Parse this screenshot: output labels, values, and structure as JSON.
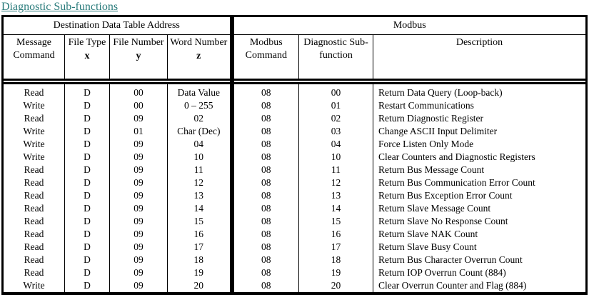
{
  "title": "Diagnostic Sub-functions",
  "title_color": "#2b7c7c",
  "table": {
    "group_headers": [
      {
        "label": "Destination Data Table Address",
        "span": 4
      },
      {
        "label": "Modbus",
        "span": 3
      }
    ],
    "columns": [
      {
        "label": "Message Command",
        "sub": ""
      },
      {
        "label": "File Type",
        "sub": "x"
      },
      {
        "label": "File Number",
        "sub": "y"
      },
      {
        "label": "Word Number",
        "sub": "z"
      },
      {
        "label": "Modbus Command",
        "sub": ""
      },
      {
        "label": "Diagnostic Sub-function",
        "sub": ""
      },
      {
        "label": "Description",
        "sub": ""
      }
    ],
    "rows": [
      [
        "Read",
        "D",
        "00",
        "Data Value",
        "08",
        "00",
        "Return Data Query (Loop-back)"
      ],
      [
        "Write",
        "D",
        "00",
        "0 – 255",
        "08",
        "01",
        "Restart Communications"
      ],
      [
        "Read",
        "D",
        "09",
        "02",
        "08",
        "02",
        "Return Diagnostic Register"
      ],
      [
        "Write",
        "D",
        "01",
        "Char (Dec)",
        "08",
        "03",
        "Change ASCII Input Delimiter"
      ],
      [
        "Write",
        "D",
        "09",
        "04",
        "08",
        "04",
        "Force Listen Only Mode"
      ],
      [
        "Write",
        "D",
        "09",
        "10",
        "08",
        "10",
        "Clear Counters and Diagnostic Registers"
      ],
      [
        "Read",
        "D",
        "09",
        "11",
        "08",
        "11",
        "Return Bus Message Count"
      ],
      [
        "Read",
        "D",
        "09",
        "12",
        "08",
        "12",
        "Return Bus Communication Error Count"
      ],
      [
        "Read",
        "D",
        "09",
        "13",
        "08",
        "13",
        "Return Bus Exception Error Count"
      ],
      [
        "Read",
        "D",
        "09",
        "14",
        "08",
        "14",
        "Return Slave Message Count"
      ],
      [
        "Read",
        "D",
        "09",
        "15",
        "08",
        "15",
        "Return Slave No Response Count"
      ],
      [
        "Read",
        "D",
        "09",
        "16",
        "08",
        "16",
        "Return Slave NAK Count"
      ],
      [
        "Read",
        "D",
        "09",
        "17",
        "08",
        "17",
        "Return Slave Busy Count"
      ],
      [
        "Read",
        "D",
        "09",
        "18",
        "08",
        "18",
        "Return Bus Character Overrun Count"
      ],
      [
        "Read",
        "D",
        "09",
        "19",
        "08",
        "19",
        "Return IOP Overrun Count (884)"
      ],
      [
        "Write",
        "D",
        "09",
        "20",
        "08",
        "20",
        "Clear Overrun Counter and Flag (884)"
      ]
    ]
  }
}
